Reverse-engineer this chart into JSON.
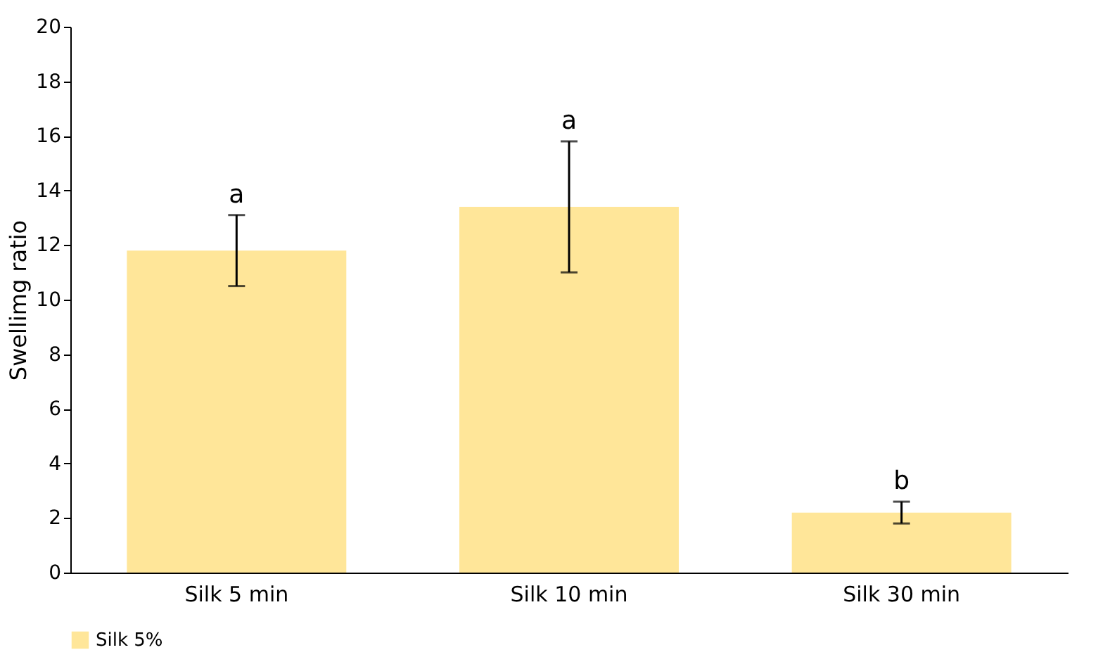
{
  "chart_data": {
    "type": "bar",
    "ylabel": "Swellimg ratio",
    "categories": [
      "Silk 5 min",
      "Silk 10 min",
      "Silk 30 min"
    ],
    "series": [
      {
        "name": "Silk 5%",
        "color": "#ffe699",
        "values": [
          11.8,
          13.4,
          2.2
        ],
        "errors": [
          [
            10.5,
            13.1
          ],
          [
            11.0,
            15.8
          ],
          [
            1.8,
            2.6
          ]
        ]
      }
    ],
    "annotations": [
      "a",
      "a",
      "b"
    ],
    "ylim": [
      0,
      20
    ],
    "yticks": [
      0,
      2,
      4,
      6,
      8,
      10,
      12,
      14,
      16,
      18,
      20
    ],
    "grid": false,
    "legend": "bottom"
  }
}
